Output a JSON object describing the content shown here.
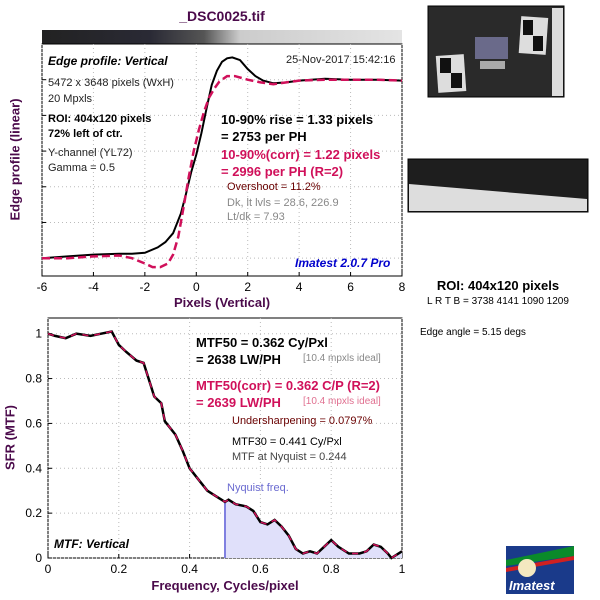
{
  "title": "_DSC0025.tif",
  "colors": {
    "axis_label": "#4b0a4b",
    "corr": "#d0105a",
    "meas": "#000000",
    "nyquist": "#8080e0",
    "nyquist_fill": "#e0e0fa",
    "version": "#0000cc",
    "overshoot": "#6a0000"
  },
  "edge": {
    "heading": "Edge profile: Vertical",
    "timestamp": "25-Nov-2017 15:42:16",
    "info": [
      "5472 x 3648 pixels (WxH)",
      "20 Mpxls"
    ],
    "roi": [
      "ROI: 404x120 pixels",
      "72% left of ctr."
    ],
    "channel": [
      "Y-channel  (YL72)",
      "Gamma = 0.5"
    ],
    "rise": [
      "10-90% rise = 1.33 pixels",
      "= 2753 per PH"
    ],
    "rise_corr": [
      "10-90%(corr) = 1.22 pixels",
      "= 2996 per PH  (R=2)"
    ],
    "overshoot": "Overshoot = 11.2%",
    "levels": [
      "Dk, lt lvls = 28.6, 226.9",
      "Lt/dk = 7.93"
    ],
    "version": "Imatest 2.0.7 Pro"
  },
  "mtf": {
    "heading": "MTF: Vertical",
    "mtf50": [
      "MTF50 = 0.362 Cy/Pxl",
      "= 2638 LW/PH"
    ],
    "ideal": "[10.4 mpxls ideal]",
    "mtf50_corr": [
      "MTF50(corr) = 0.362 C/P  (R=2)",
      "= 2639 LW/PH"
    ],
    "ideal_corr": "[10.4 mpxls ideal]",
    "undersharpening": "Undersharpening = 0.0797%",
    "mtf30": "MTF30 = 0.441 Cy/Pxl",
    "nyquist_value": "MTF at Nyquist = 0.244",
    "nyquist_label": "Nyquist freq."
  },
  "side": {
    "roi_title": "ROI: 404x120 pixels",
    "lrtb": "L R  T B = 3738 4141   1090 1209",
    "edge_angle": "Edge angle = 5.15 degs",
    "logo": "Imatest"
  },
  "chart_data": [
    {
      "type": "line",
      "title": "",
      "xlabel": "Pixels (Vertical)",
      "ylabel": "Edge profile (linear)",
      "xlim": [
        -6,
        8
      ],
      "ylim": [
        -0.1,
        1.2
      ],
      "xticks": [
        "-6",
        "-4",
        "-2",
        "0",
        "2",
        "4",
        "6",
        "8"
      ],
      "grid": true,
      "series": [
        {
          "x": [
            -6,
            -5,
            -4,
            -3,
            -2.5,
            -2,
            -1.5,
            -1.2,
            -0.9,
            -0.6,
            -0.4,
            -0.2,
            0,
            0.2,
            0.4,
            0.6,
            0.8,
            1,
            1.2,
            1.4,
            1.7,
            2,
            2.3,
            2.6,
            3,
            3.5,
            4,
            5,
            6,
            7,
            8
          ],
          "y": [
            0,
            0.01,
            0.02,
            0.025,
            0.025,
            0.03,
            0.06,
            0.09,
            0.14,
            0.25,
            0.36,
            0.48,
            0.58,
            0.7,
            0.84,
            0.97,
            1.05,
            1.1,
            1.12,
            1.125,
            1.11,
            1.06,
            1.02,
            0.995,
            0.98,
            0.985,
            0.995,
            1.005,
            1.0,
            1.0,
            0.995
          ]
        },
        {
          "x": [
            -6,
            -5,
            -4,
            -3,
            -2.5,
            -2,
            -1.7,
            -1.4,
            -1.1,
            -0.9,
            -0.7,
            -0.5,
            -0.3,
            -0.1,
            0.1,
            0.3,
            0.5,
            0.7,
            0.9,
            1.2,
            1.5,
            2,
            2.5,
            3,
            3.5,
            4,
            5,
            6,
            7,
            8
          ],
          "y": [
            0,
            0.0,
            0.01,
            0.015,
            0.0,
            -0.03,
            -0.05,
            -0.05,
            -0.03,
            0.02,
            0.12,
            0.28,
            0.45,
            0.6,
            0.72,
            0.82,
            0.9,
            0.95,
            0.99,
            1.02,
            1.02,
            1.0,
            0.985,
            0.975,
            0.985,
            0.995,
            1.0,
            1.0,
            1.0,
            0.995
          ]
        }
      ]
    },
    {
      "type": "line",
      "title": "",
      "xlabel": "Frequency, Cycles/pixel",
      "ylabel": "SFR (MTF)",
      "xlim": [
        0,
        1
      ],
      "ylim": [
        0,
        1.07
      ],
      "xticks": [
        "0",
        "0.2",
        "0.4",
        "0.6",
        "0.8",
        "1"
      ],
      "yticks": [
        "0",
        "0.2",
        "0.4",
        "0.6",
        "0.8",
        "1"
      ],
      "grid": true,
      "nyquist": 0.5,
      "series": [
        {
          "x": [
            0,
            0.02,
            0.05,
            0.08,
            0.12,
            0.15,
            0.18,
            0.2,
            0.22,
            0.25,
            0.27,
            0.29,
            0.3,
            0.32,
            0.33,
            0.36,
            0.38,
            0.4,
            0.42,
            0.45,
            0.48,
            0.5,
            0.51,
            0.53,
            0.56,
            0.58,
            0.6,
            0.62,
            0.64,
            0.66,
            0.68,
            0.7,
            0.72,
            0.74,
            0.76,
            0.78,
            0.8,
            0.82,
            0.85,
            0.88,
            0.9,
            0.92,
            0.94,
            0.96,
            0.97,
            1.0
          ],
          "y": [
            1.0,
            0.99,
            0.98,
            1.0,
            0.99,
            1.0,
            1.01,
            0.95,
            0.92,
            0.88,
            0.87,
            0.77,
            0.72,
            0.69,
            0.61,
            0.55,
            0.48,
            0.4,
            0.36,
            0.3,
            0.27,
            0.25,
            0.26,
            0.24,
            0.23,
            0.21,
            0.16,
            0.15,
            0.17,
            0.14,
            0.1,
            0.04,
            0.02,
            0.03,
            0.02,
            0.05,
            0.08,
            0.05,
            0.02,
            0.02,
            0.03,
            0.06,
            0.05,
            0.02,
            0.0,
            0.03
          ]
        }
      ]
    }
  ]
}
